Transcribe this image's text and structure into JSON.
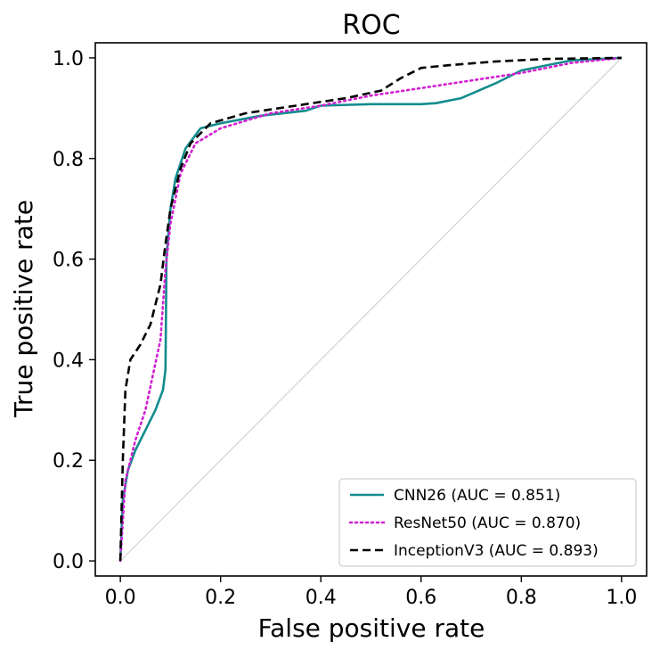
{
  "chart_data": {
    "type": "line",
    "title": "ROC",
    "xlabel": "False positive rate",
    "ylabel": "True positive rate",
    "xlim": [
      -0.05,
      1.05
    ],
    "ylim": [
      -0.03,
      1.03
    ],
    "xticks": [
      "0.0",
      "0.2",
      "0.4",
      "0.6",
      "0.8",
      "1.0"
    ],
    "yticks": [
      "0.0",
      "0.2",
      "0.4",
      "0.6",
      "0.8",
      "1.0"
    ],
    "xtick_values": [
      0,
      0.2,
      0.4,
      0.6,
      0.8,
      1.0
    ],
    "ytick_values": [
      0,
      0.2,
      0.4,
      0.6,
      0.8,
      1.0
    ],
    "grid": false,
    "legend_position": "bottom-right",
    "diagonal": {
      "x": [
        0,
        1
      ],
      "y": [
        0,
        1
      ],
      "color": "#d3d3d3"
    },
    "series": [
      {
        "name": "CNN26 (AUC = 0.851)",
        "color": "#138c8c",
        "style": "solid",
        "x": [
          0,
          0.005,
          0.015,
          0.03,
          0.05,
          0.07,
          0.085,
          0.09,
          0.092,
          0.095,
          0.1,
          0.11,
          0.13,
          0.16,
          0.2,
          0.28,
          0.37,
          0.4,
          0.5,
          0.6,
          0.63,
          0.68,
          0.75,
          0.8,
          0.9,
          1.0
        ],
        "y": [
          0,
          0.12,
          0.18,
          0.22,
          0.26,
          0.3,
          0.34,
          0.38,
          0.6,
          0.64,
          0.7,
          0.76,
          0.82,
          0.86,
          0.87,
          0.885,
          0.895,
          0.905,
          0.908,
          0.908,
          0.91,
          0.92,
          0.95,
          0.975,
          0.995,
          1.0
        ]
      },
      {
        "name": "ResNet50 (AUC = 0.870)",
        "color": "#d21fd2",
        "style": "dotted",
        "x": [
          0,
          0.01,
          0.03,
          0.05,
          0.08,
          0.09,
          0.1,
          0.12,
          0.15,
          0.2,
          0.3,
          0.4,
          0.5,
          0.6,
          0.7,
          0.8,
          0.9,
          1.0
        ],
        "y": [
          0,
          0.16,
          0.24,
          0.3,
          0.44,
          0.58,
          0.67,
          0.77,
          0.83,
          0.86,
          0.89,
          0.905,
          0.925,
          0.94,
          0.955,
          0.97,
          0.99,
          1.0
        ]
      },
      {
        "name": "InceptionV3 (AUC = 0.893)",
        "color": "#000000",
        "style": "dashed",
        "x": [
          0,
          0.005,
          0.01,
          0.02,
          0.04,
          0.06,
          0.08,
          0.09,
          0.1,
          0.12,
          0.14,
          0.18,
          0.25,
          0.35,
          0.45,
          0.52,
          0.56,
          0.6,
          0.65,
          0.75,
          0.85,
          1.0
        ],
        "y": [
          0,
          0.2,
          0.34,
          0.4,
          0.43,
          0.47,
          0.55,
          0.63,
          0.7,
          0.78,
          0.83,
          0.87,
          0.89,
          0.905,
          0.92,
          0.935,
          0.96,
          0.98,
          0.985,
          0.993,
          0.998,
          1.0
        ]
      }
    ]
  }
}
